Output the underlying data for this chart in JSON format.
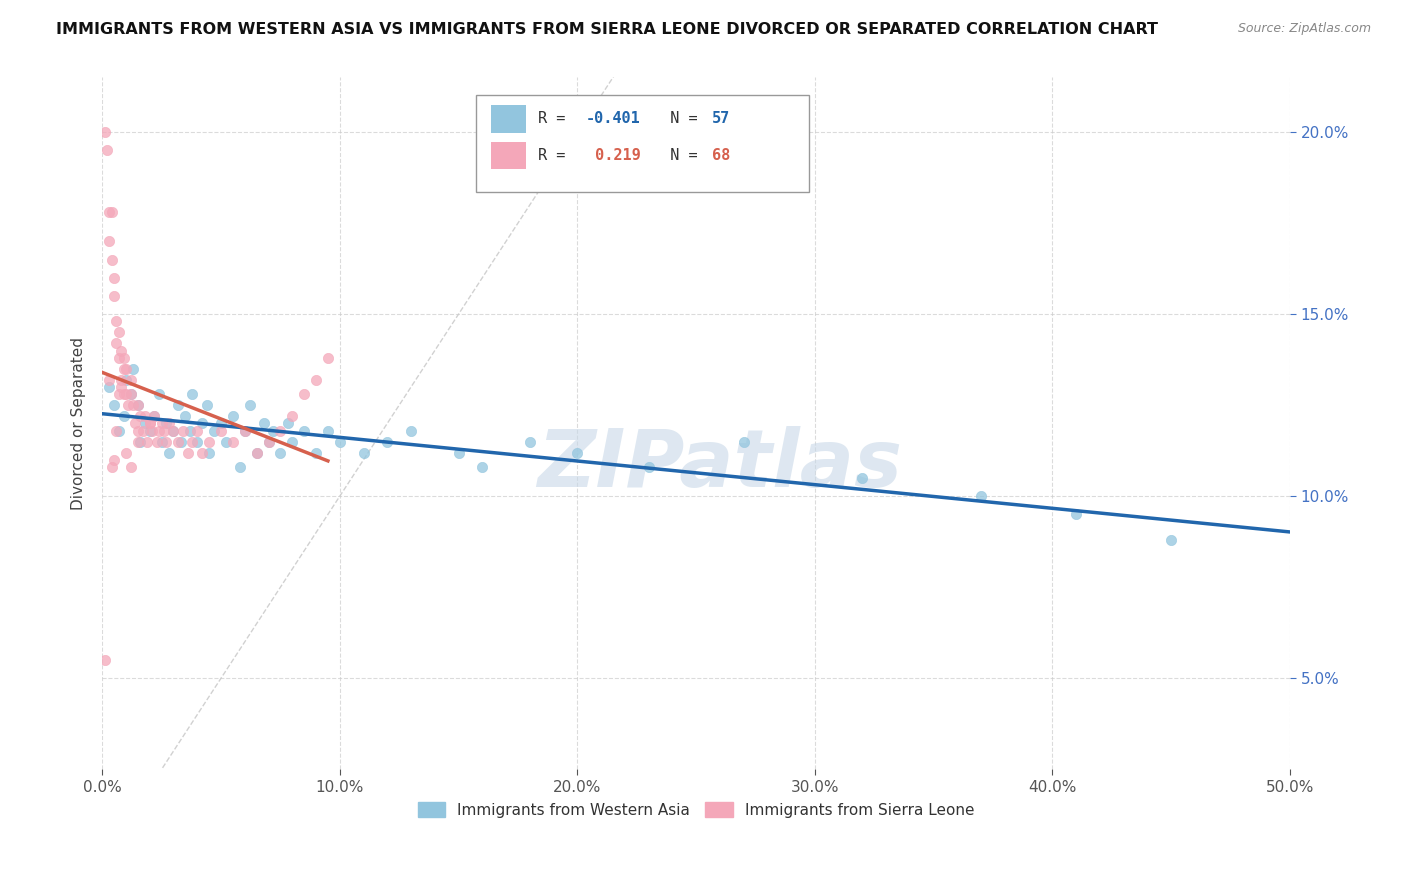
{
  "title": "IMMIGRANTS FROM WESTERN ASIA VS IMMIGRANTS FROM SIERRA LEONE DIVORCED OR SEPARATED CORRELATION CHART",
  "source": "Source: ZipAtlas.com",
  "ylabel": "Divorced or Separated",
  "watermark": "ZIPatlas",
  "xmin": 0.0,
  "xmax": 0.5,
  "ymin": 0.025,
  "ymax": 0.215,
  "yticks": [
    0.05,
    0.1,
    0.15,
    0.2
  ],
  "ytick_labels": [
    "5.0%",
    "10.0%",
    "15.0%",
    "20.0%"
  ],
  "xticks": [
    0.0,
    0.1,
    0.2,
    0.3,
    0.4,
    0.5
  ],
  "xtick_labels": [
    "0.0%",
    "10.0%",
    "20.0%",
    "30.0%",
    "40.0%",
    "50.0%"
  ],
  "legend_labels": [
    "Immigrants from Western Asia",
    "Immigrants from Sierra Leone"
  ],
  "blue_color": "#92c5de",
  "pink_color": "#f4a7b9",
  "blue_line_color": "#2166ac",
  "pink_line_color": "#d6604d",
  "blue_r": "-0.401",
  "blue_n": "57",
  "pink_r": "0.219",
  "pink_n": "68",
  "blue_dots_x": [
    0.003,
    0.005,
    0.007,
    0.009,
    0.01,
    0.012,
    0.013,
    0.015,
    0.016,
    0.018,
    0.02,
    0.022,
    0.024,
    0.025,
    0.027,
    0.028,
    0.03,
    0.032,
    0.033,
    0.035,
    0.037,
    0.038,
    0.04,
    0.042,
    0.044,
    0.045,
    0.047,
    0.05,
    0.052,
    0.055,
    0.058,
    0.06,
    0.062,
    0.065,
    0.068,
    0.07,
    0.072,
    0.075,
    0.078,
    0.08,
    0.085,
    0.09,
    0.095,
    0.1,
    0.11,
    0.12,
    0.13,
    0.15,
    0.16,
    0.18,
    0.2,
    0.23,
    0.27,
    0.32,
    0.37,
    0.41,
    0.45
  ],
  "blue_dots_y": [
    0.13,
    0.125,
    0.118,
    0.122,
    0.132,
    0.128,
    0.135,
    0.125,
    0.115,
    0.12,
    0.118,
    0.122,
    0.128,
    0.115,
    0.12,
    0.112,
    0.118,
    0.125,
    0.115,
    0.122,
    0.118,
    0.128,
    0.115,
    0.12,
    0.125,
    0.112,
    0.118,
    0.12,
    0.115,
    0.122,
    0.108,
    0.118,
    0.125,
    0.112,
    0.12,
    0.115,
    0.118,
    0.112,
    0.12,
    0.115,
    0.118,
    0.112,
    0.118,
    0.115,
    0.112,
    0.115,
    0.118,
    0.112,
    0.108,
    0.115,
    0.112,
    0.108,
    0.115,
    0.105,
    0.1,
    0.095,
    0.088
  ],
  "pink_dots_x": [
    0.001,
    0.002,
    0.003,
    0.003,
    0.004,
    0.004,
    0.005,
    0.005,
    0.006,
    0.006,
    0.007,
    0.007,
    0.008,
    0.008,
    0.009,
    0.009,
    0.01,
    0.01,
    0.011,
    0.012,
    0.012,
    0.013,
    0.014,
    0.015,
    0.015,
    0.016,
    0.017,
    0.018,
    0.019,
    0.02,
    0.021,
    0.022,
    0.023,
    0.024,
    0.025,
    0.026,
    0.027,
    0.028,
    0.03,
    0.032,
    0.034,
    0.036,
    0.038,
    0.04,
    0.042,
    0.045,
    0.05,
    0.055,
    0.06,
    0.065,
    0.07,
    0.075,
    0.08,
    0.085,
    0.09,
    0.095,
    0.003,
    0.004,
    0.005,
    0.006,
    0.007,
    0.008,
    0.009,
    0.01,
    0.012,
    0.015,
    0.02,
    0.001
  ],
  "pink_dots_y": [
    0.2,
    0.195,
    0.178,
    0.17,
    0.178,
    0.165,
    0.16,
    0.155,
    0.148,
    0.142,
    0.145,
    0.138,
    0.14,
    0.132,
    0.138,
    0.128,
    0.135,
    0.128,
    0.125,
    0.132,
    0.128,
    0.125,
    0.12,
    0.125,
    0.118,
    0.122,
    0.118,
    0.122,
    0.115,
    0.12,
    0.118,
    0.122,
    0.115,
    0.118,
    0.12,
    0.118,
    0.115,
    0.12,
    0.118,
    0.115,
    0.118,
    0.112,
    0.115,
    0.118,
    0.112,
    0.115,
    0.118,
    0.115,
    0.118,
    0.112,
    0.115,
    0.118,
    0.122,
    0.128,
    0.132,
    0.138,
    0.132,
    0.108,
    0.11,
    0.118,
    0.128,
    0.13,
    0.135,
    0.112,
    0.108,
    0.115,
    0.12,
    0.055
  ],
  "pink_trend_x0": 0.0,
  "pink_trend_x1": 0.095,
  "blue_trend_x0": 0.0,
  "blue_trend_x1": 0.5
}
